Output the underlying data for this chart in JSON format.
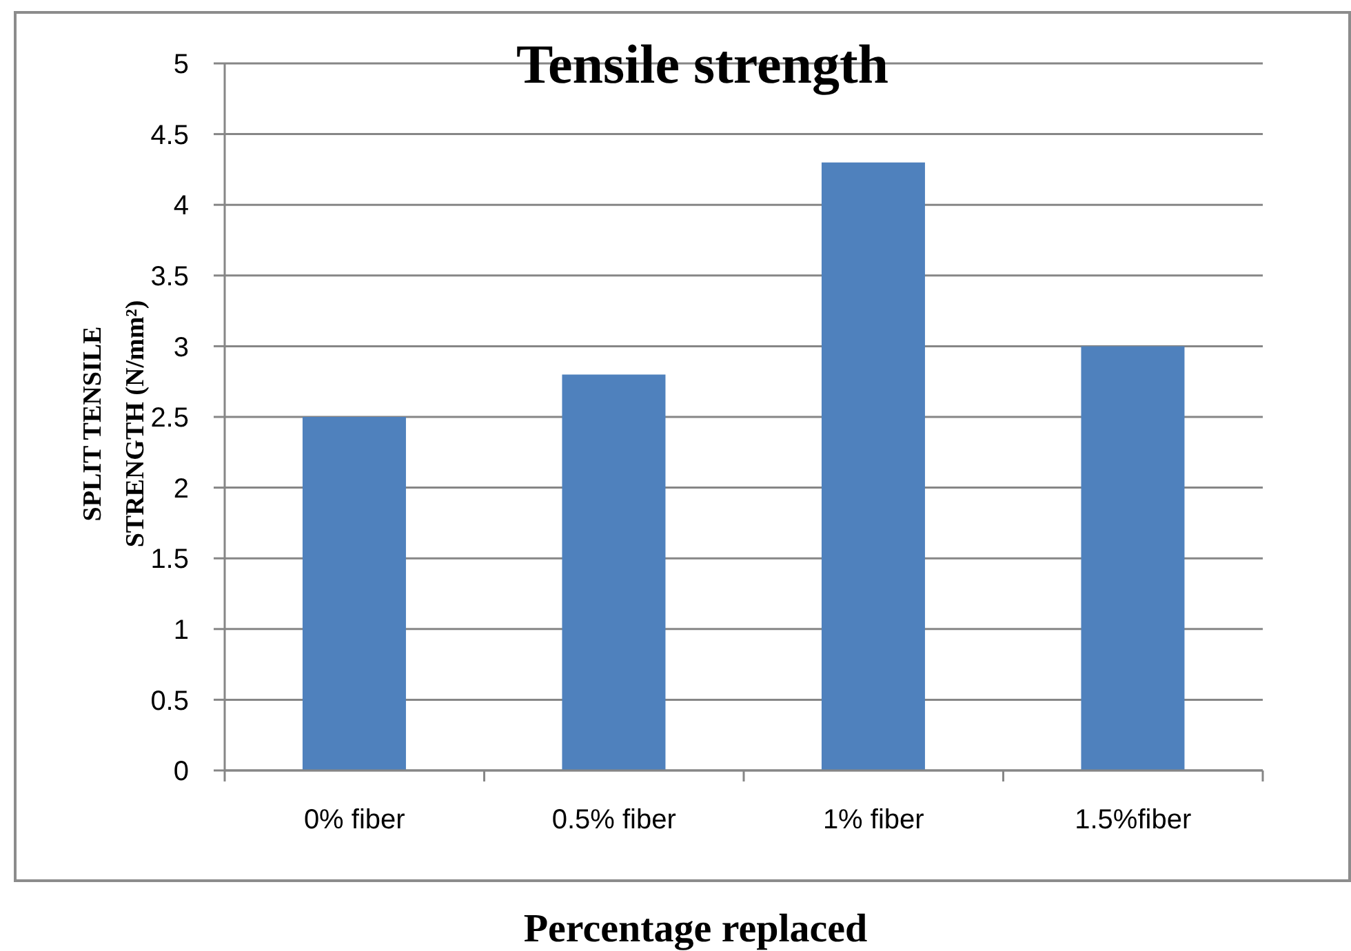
{
  "chart_data": {
    "type": "bar",
    "title": "Tensile strength",
    "xlabel": "Percentage replaced",
    "ylabel": "SPLIT TENSILE STRENGTH (N/mm²)",
    "categories": [
      "0% fiber",
      "0.5% fiber",
      "1% fiber",
      "1.5%fiber"
    ],
    "values": [
      2.5,
      2.8,
      4.3,
      3.0
    ],
    "color": "#4f81bd",
    "ylim": [
      0,
      5
    ],
    "yticks": [
      0,
      0.5,
      1,
      1.5,
      2,
      2.5,
      3,
      3.5,
      4,
      4.5,
      5
    ],
    "grid": "y"
  }
}
